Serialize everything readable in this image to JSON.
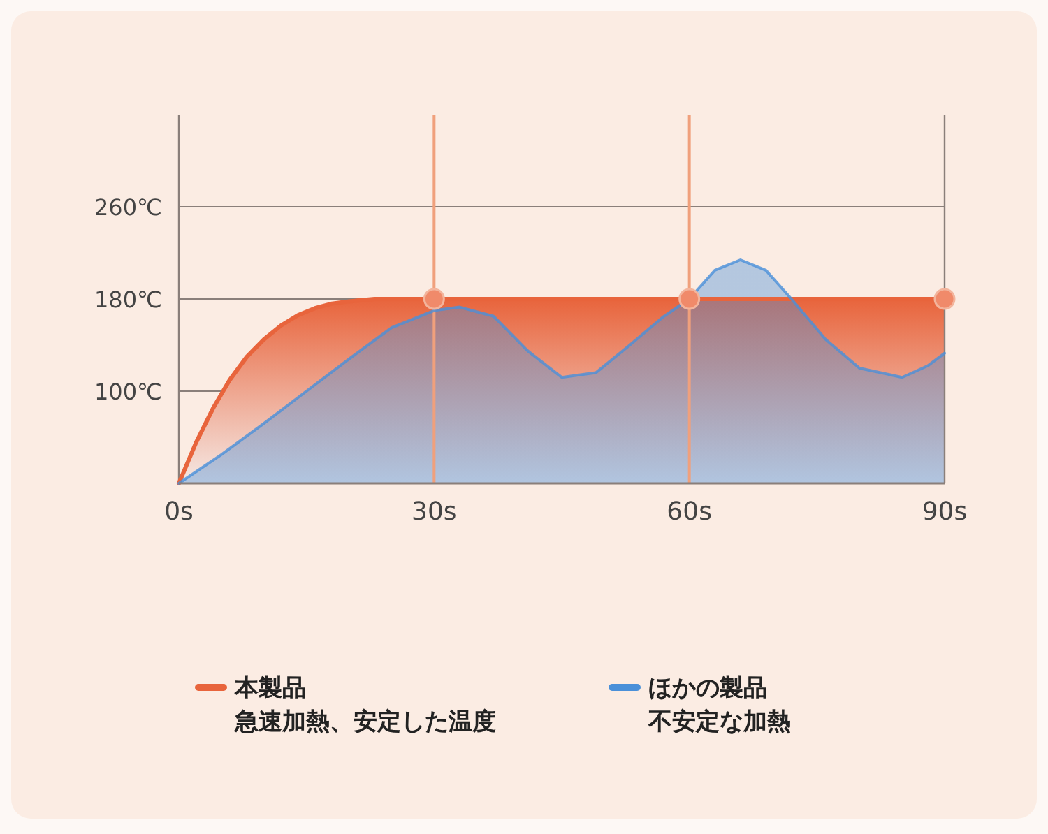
{
  "chart_data": {
    "type": "area",
    "x": [
      0,
      2,
      4,
      6,
      8,
      10,
      12,
      14,
      16,
      18,
      20,
      23,
      30,
      60,
      90
    ],
    "series": [
      {
        "name": "本製品",
        "color": "#e8643c",
        "values": [
          20,
          55,
          85,
          110,
          130,
          145,
          157,
          166,
          172,
          176,
          178,
          180,
          180,
          180,
          180
        ]
      },
      {
        "name": "ほかの製品",
        "type": "area",
        "color": "#4a90d9",
        "x": [
          0,
          5,
          10,
          15,
          20,
          25,
          30,
          33,
          37,
          41,
          45,
          49,
          53,
          57,
          60,
          63,
          66,
          69,
          72,
          76,
          80,
          85,
          88,
          90
        ],
        "values": [
          20,
          45,
          72,
          100,
          128,
          155,
          170,
          173,
          165,
          135,
          112,
          116,
          140,
          165,
          180,
          205,
          214,
          205,
          180,
          145,
          120,
          112,
          122,
          133
        ]
      },
      {
        "type": "scatter",
        "color": "#f08a6a",
        "marker": "circle",
        "x": [
          30,
          60,
          90
        ],
        "values": [
          180,
          180,
          180
        ]
      }
    ],
    "xlim": [
      0,
      90
    ],
    "ylim": [
      20,
      340
    ],
    "xticks": [
      {
        "value": 0,
        "label": "0s"
      },
      {
        "value": 30,
        "label": "30s"
      },
      {
        "value": 60,
        "label": "60s"
      },
      {
        "value": 90,
        "label": "90s"
      }
    ],
    "yticks": [
      {
        "value": 100,
        "label": "100℃"
      },
      {
        "value": 180,
        "label": "180℃"
      },
      {
        "value": 260,
        "label": "260℃"
      }
    ],
    "grid": true,
    "legend": "bottom",
    "annotations": [
      "急速加熱、安定した温度",
      "不安定な加熱"
    ]
  }
}
